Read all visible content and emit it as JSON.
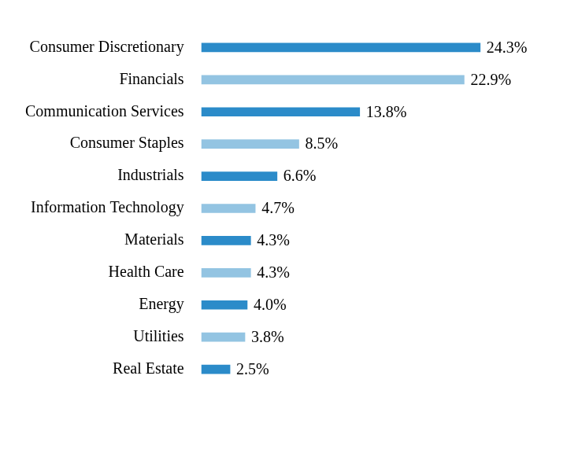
{
  "chart_data": {
    "type": "bar",
    "orientation": "horizontal",
    "categories": [
      "Consumer Discretionary",
      "Financials",
      "Communication Services",
      "Consumer Staples",
      "Industrials",
      "Information Technology",
      "Materials",
      "Health Care",
      "Energy",
      "Utilities",
      "Real Estate"
    ],
    "values": [
      24.3,
      22.9,
      13.8,
      8.5,
      6.6,
      4.7,
      4.3,
      4.3,
      4.0,
      3.8,
      2.5
    ],
    "value_labels": [
      "24.3%",
      "22.9%",
      "13.8%",
      "8.5%",
      "6.6%",
      "4.7%",
      "4.3%",
      "4.3%",
      "4.0%",
      "3.8%",
      "2.5%"
    ],
    "colors": [
      "#2b8bc9",
      "#93c4e2",
      "#2b8bc9",
      "#93c4e2",
      "#2b8bc9",
      "#93c4e2",
      "#2b8bc9",
      "#93c4e2",
      "#2b8bc9",
      "#93c4e2",
      "#2b8bc9"
    ],
    "data_labels": true,
    "tick_labels": "y",
    "grid": false
  }
}
